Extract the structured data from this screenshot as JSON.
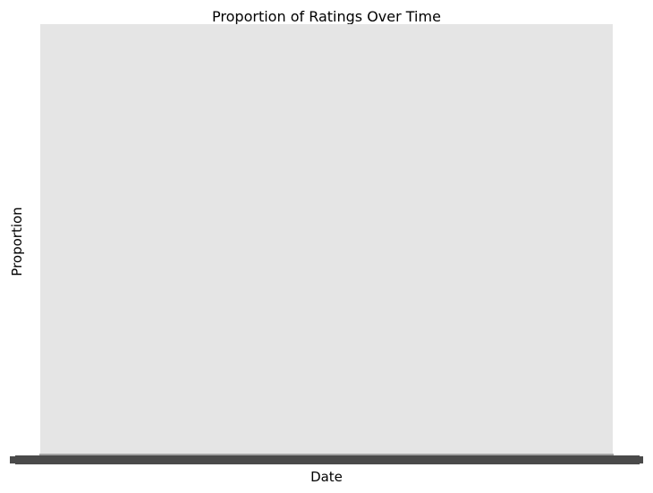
{
  "chart_data": {
    "type": "area",
    "title": "Proportion of Ratings Over Time",
    "xlabel": "Date",
    "ylabel": "Proportion",
    "series": [],
    "grid": false,
    "legend": "none",
    "x_tick_labels_legible": false,
    "colors": {
      "plot_background": "#e5e5e5",
      "tick_band": "#4a4a4a",
      "figure_background": "#ffffff"
    }
  }
}
